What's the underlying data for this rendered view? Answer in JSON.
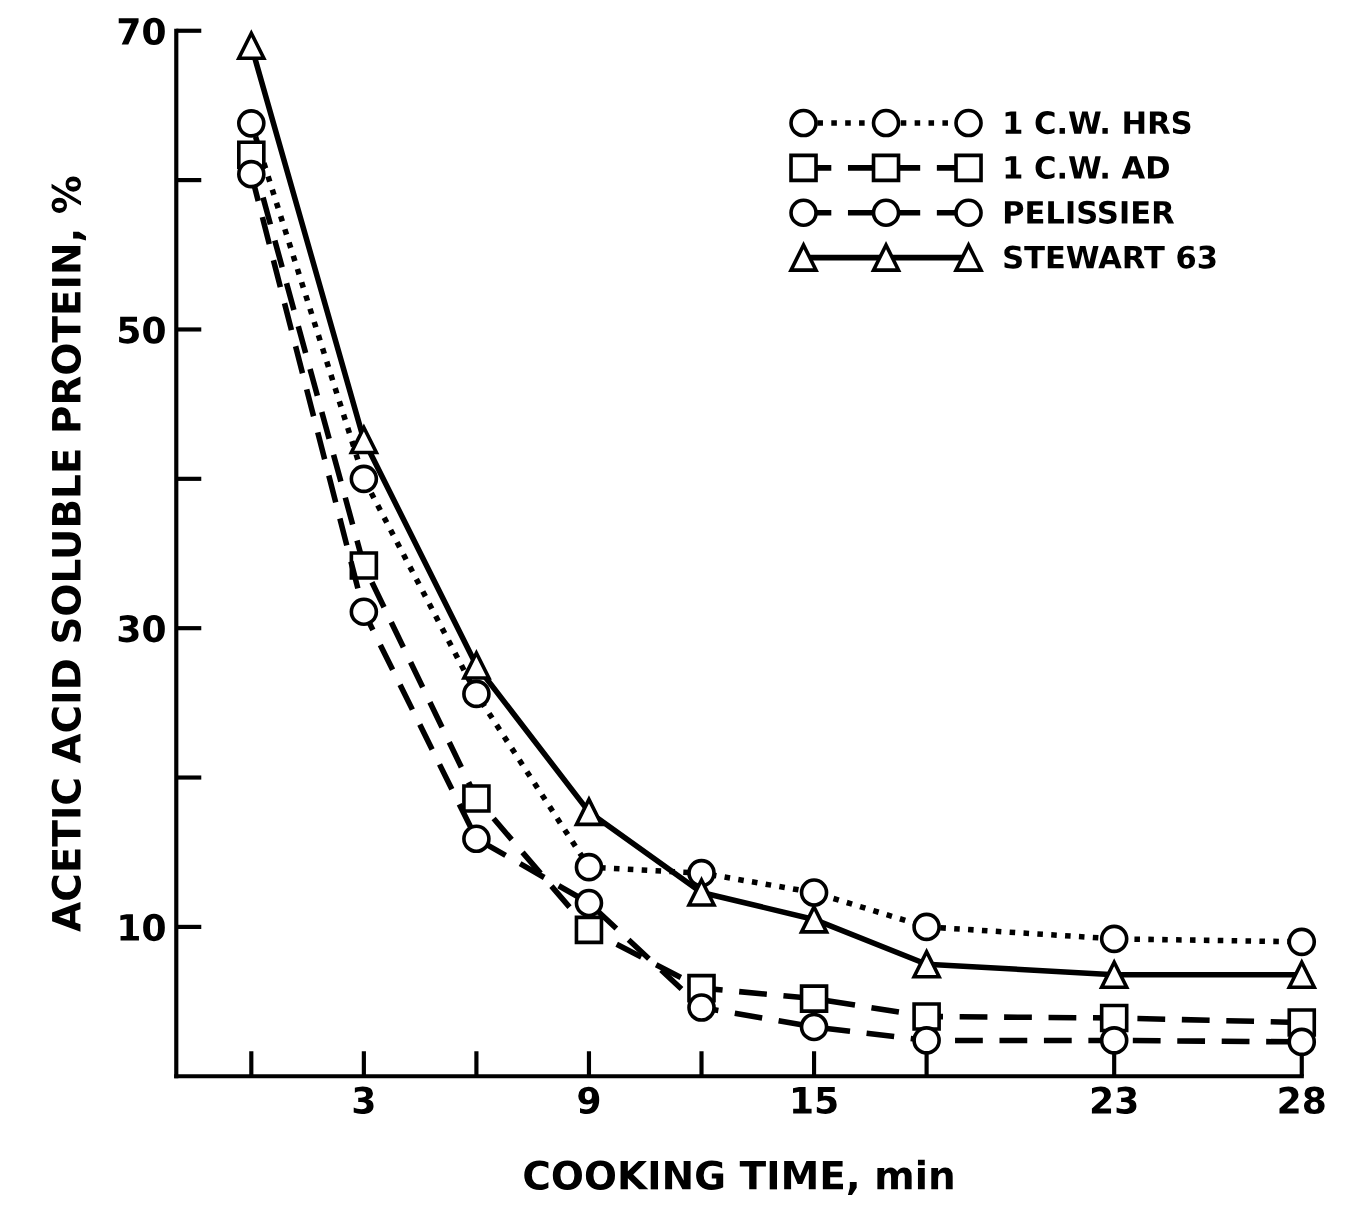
{
  "chart_data": {
    "type": "line",
    "xlabel": "COOKING TIME, min",
    "ylabel": "ACETIC ACID SOLUBLE PROTEIN, %",
    "x": [
      0,
      3,
      6,
      9,
      12,
      15,
      18,
      23,
      28
    ],
    "series": [
      {
        "name": "1 C.W. HRS",
        "color": "#000000",
        "marker": "circle",
        "line_style": "dotted",
        "values": [
          63.8,
          40.0,
          25.6,
          14.0,
          13.6,
          12.3,
          10.0,
          9.2,
          9.0
        ]
      },
      {
        "name": "1 C.W. AD",
        "color": "#000000",
        "marker": "square",
        "line_style": "dashed",
        "values": [
          61.7,
          34.2,
          18.6,
          9.8,
          5.9,
          5.2,
          4.0,
          3.9,
          3.6
        ]
      },
      {
        "name": "PELISSIER",
        "color": "#000000",
        "marker": "circle",
        "line_style": "dashed",
        "values": [
          60.4,
          31.1,
          15.9,
          11.6,
          4.6,
          3.3,
          2.4,
          2.4,
          2.3
        ]
      },
      {
        "name": "STEWART 63",
        "color": "#000000",
        "marker": "triangle",
        "line_style": "solid",
        "values": [
          69.0,
          42.6,
          27.5,
          17.7,
          12.3,
          10.5,
          7.5,
          6.8,
          6.8
        ]
      }
    ],
    "xlim": [
      -2,
      28
    ],
    "ylim": [
      0,
      70
    ],
    "xticks": [
      {
        "value": 0,
        "label": null
      },
      3,
      {
        "value": 6,
        "label": null
      },
      9,
      {
        "value": 12,
        "label": null
      },
      15,
      {
        "value": 18,
        "label": null
      },
      23,
      28
    ],
    "yticks": [
      10,
      {
        "value": 20,
        "label": null
      },
      30,
      {
        "value": 40,
        "label": null
      },
      50,
      {
        "value": 60,
        "label": null
      },
      70
    ],
    "grid": false,
    "legend": "top right"
  }
}
